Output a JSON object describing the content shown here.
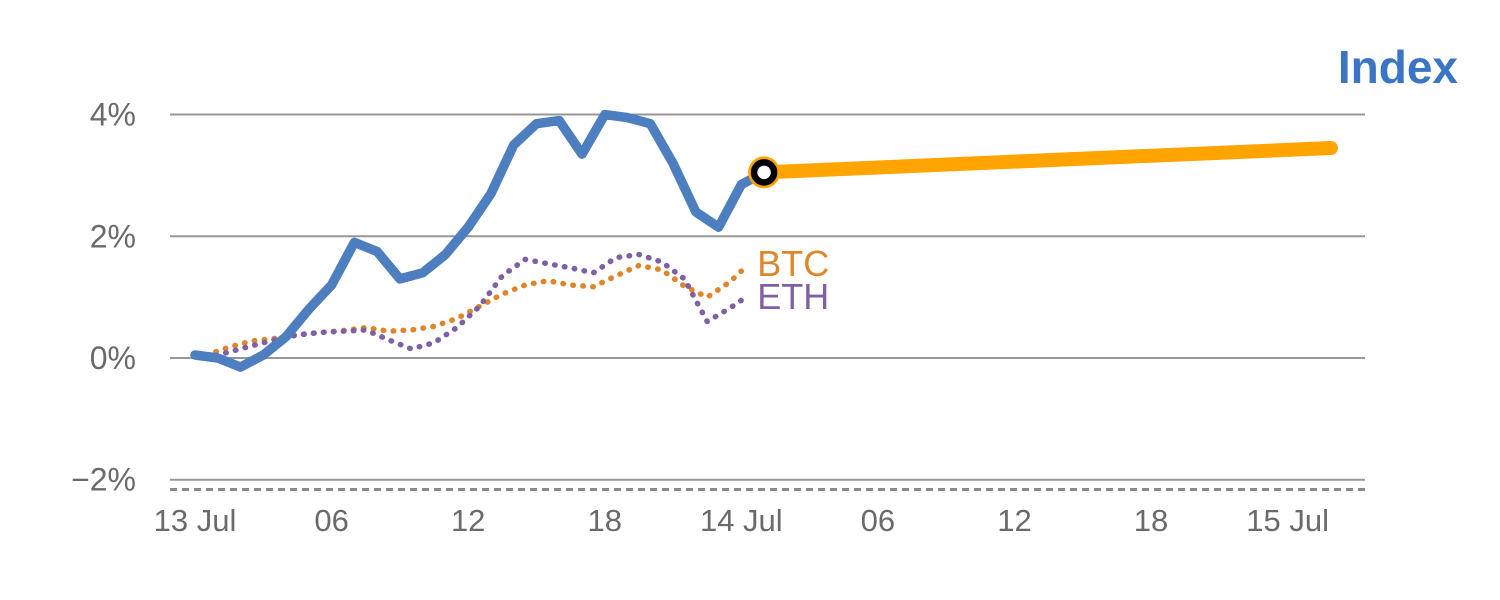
{
  "colors": {
    "index": "#4d7ebf",
    "title": "#3a76c4",
    "btc": "#e0862a",
    "eth": "#7e60a5",
    "forecast": "#ffa400",
    "grid": "#979797",
    "axis_dashed": "#8a8a8a",
    "tick_text": "#6a6a6a",
    "marker_ring": "#000000",
    "marker_center": "#ffffff"
  },
  "chart_data": {
    "type": "line",
    "title": "Index",
    "x_unit": "hours since 13 Jul 00:00",
    "xlim": [
      -1.1,
      51.4
    ],
    "ylim": [
      -2.3,
      4.65
    ],
    "grid": "horizontal",
    "legend_position": "none",
    "xticks": [
      0,
      6,
      12,
      18,
      24,
      30,
      36,
      42,
      48
    ],
    "xtick_labels": [
      "13 Jul",
      "06",
      "12",
      "18",
      "14 Jul",
      "06",
      "12",
      "18",
      "15 Jul"
    ],
    "yticks": [
      4,
      2,
      0,
      -2
    ],
    "ytick_labels": [
      "4%",
      "2%",
      "0%",
      "−2%"
    ],
    "dashed_axis_y": -2.16,
    "series": [
      {
        "name": "BTC",
        "color_key": "btc",
        "line": "dotted",
        "width": 5.5,
        "x": [
          0.5,
          1.5,
          2.5,
          3.5,
          4.5,
          5.5,
          6.5,
          7.5,
          8.5,
          9.5,
          10.5,
          11.5,
          12.5,
          13.5,
          14.5,
          15.5,
          16.5,
          17.5,
          18.5,
          19.5,
          20.5,
          21.5,
          22.5,
          23.5,
          24.2
        ],
        "y": [
          0.05,
          0.18,
          0.28,
          0.32,
          0.38,
          0.42,
          0.45,
          0.5,
          0.44,
          0.46,
          0.52,
          0.65,
          0.85,
          1.05,
          1.2,
          1.27,
          1.2,
          1.17,
          1.35,
          1.52,
          1.45,
          1.18,
          1.0,
          1.25,
          1.5
        ]
      },
      {
        "name": "ETH",
        "color_key": "eth",
        "line": "dotted",
        "width": 5.5,
        "x": [
          0.5,
          1.5,
          2.5,
          3.5,
          4.5,
          5.5,
          6.5,
          7.5,
          8.5,
          9.5,
          10.5,
          11.5,
          12.5,
          13.5,
          14.5,
          15.5,
          16.5,
          17.5,
          18.5,
          19.5,
          20.5,
          21.5,
          22.5,
          23.5,
          24.2
        ],
        "y": [
          0.0,
          0.1,
          0.2,
          0.3,
          0.38,
          0.42,
          0.44,
          0.46,
          0.3,
          0.15,
          0.25,
          0.5,
          0.85,
          1.35,
          1.62,
          1.55,
          1.48,
          1.4,
          1.65,
          1.7,
          1.58,
          1.3,
          0.6,
          0.82,
          1.0
        ]
      },
      {
        "name": "Index",
        "color_key": "index",
        "line": "solid",
        "width": 9.5,
        "x": [
          0,
          1,
          2,
          3,
          4,
          5,
          6,
          7,
          8,
          9,
          10,
          11,
          12,
          13,
          14,
          15,
          16,
          17,
          18,
          19,
          20,
          21,
          22,
          23,
          24,
          25
        ],
        "y": [
          0.05,
          0.0,
          -0.15,
          0.05,
          0.35,
          0.8,
          1.2,
          1.9,
          1.75,
          1.3,
          1.4,
          1.7,
          2.15,
          2.7,
          3.5,
          3.85,
          3.9,
          3.35,
          4.0,
          3.95,
          3.85,
          3.2,
          2.4,
          2.15,
          2.85,
          3.05
        ]
      },
      {
        "name": "Index forecast",
        "color_key": "forecast",
        "line": "solid",
        "width": 14,
        "x": [
          25,
          49.9
        ],
        "y": [
          3.05,
          3.45
        ]
      }
    ],
    "marker": {
      "x": 25,
      "y": 3.05,
      "description": "black ring with white center on orange forecast start"
    },
    "annotations": [
      {
        "text": "BTC",
        "x": 24.7,
        "y": 1.55,
        "color_key": "btc"
      },
      {
        "text": "ETH",
        "x": 24.7,
        "y": 1.0,
        "color_key": "eth"
      }
    ]
  }
}
